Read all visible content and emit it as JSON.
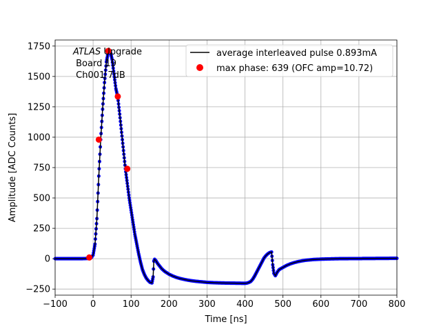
{
  "chart_data": {
    "type": "line",
    "xlabel": "Time [ns]",
    "ylabel": "Amplitude [ADC Counts]",
    "xlim": [
      -100,
      800
    ],
    "ylim": [
      -300,
      1800
    ],
    "x_ticks": [
      -100,
      0,
      100,
      200,
      300,
      400,
      500,
      600,
      700,
      800
    ],
    "y_ticks": [
      -250,
      0,
      250,
      500,
      750,
      1000,
      1250,
      1500,
      1750
    ],
    "grid": true,
    "legend_position": "upper right",
    "annotation": {
      "experiment": "ATLAS",
      "experiment_suffix": " Upgrade",
      "line2": " Board 19",
      "line3": " Ch001 7dB"
    },
    "series": [
      {
        "name": "average interleaved pulse 0.893mA",
        "kind": "line",
        "color": "#000000",
        "x": [
          -100,
          -30,
          -12,
          -5,
          0,
          5,
          10,
          15,
          20,
          25,
          30,
          35,
          40,
          45,
          50,
          55,
          60,
          65,
          70,
          75,
          80,
          85,
          90,
          95,
          100,
          105,
          110,
          115,
          120,
          125,
          130,
          135,
          140,
          145,
          150,
          155,
          158,
          160,
          162,
          165,
          170,
          175,
          180,
          185,
          190,
          200,
          210,
          220,
          230,
          240,
          250,
          260,
          270,
          280,
          290,
          300,
          320,
          340,
          360,
          380,
          400,
          405,
          410,
          415,
          420,
          425,
          430,
          435,
          440,
          445,
          450,
          455,
          460,
          465,
          470,
          473,
          476,
          480,
          485,
          490,
          500,
          510,
          520,
          530,
          540,
          550,
          560,
          580,
          600,
          620,
          650,
          700,
          750,
          800
        ],
        "y": [
          0,
          0,
          2,
          8,
          30,
          120,
          330,
          680,
          980,
          1230,
          1450,
          1620,
          1700,
          1710,
          1640,
          1520,
          1400,
          1330,
          1190,
          1040,
          890,
          740,
          620,
          500,
          400,
          300,
          200,
          120,
          40,
          -30,
          -90,
          -130,
          -160,
          -180,
          -195,
          -200,
          -150,
          -20,
          -5,
          -15,
          -40,
          -60,
          -80,
          -95,
          -108,
          -128,
          -143,
          -155,
          -164,
          -171,
          -177,
          -182,
          -186,
          -189,
          -192,
          -195,
          -198,
          -200,
          -201,
          -202,
          -203,
          -201,
          -196,
          -188,
          -170,
          -145,
          -115,
          -85,
          -55,
          -25,
          5,
          25,
          40,
          50,
          55,
          -50,
          -120,
          -140,
          -110,
          -90,
          -72,
          -55,
          -42,
          -32,
          -24,
          -18,
          -13,
          -7,
          -4,
          -2,
          0,
          1,
          2,
          3
        ]
      },
      {
        "name": "max phase: 639 (OFC amp=10.72)",
        "kind": "markers",
        "color": "#ff0000",
        "x": [
          -10,
          15,
          40,
          65,
          90
        ],
        "y": [
          10,
          980,
          1710,
          1335,
          740
        ]
      }
    ]
  }
}
